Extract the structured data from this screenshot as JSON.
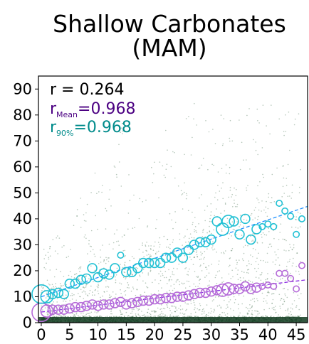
{
  "chart_data": {
    "type": "scatter",
    "title_lines": [
      "Shallow Carbonates",
      "(MAM)"
    ],
    "xlabel": "",
    "ylabel": "",
    "xlim": [
      -0.5,
      47
    ],
    "ylim": [
      0,
      95
    ],
    "x_ticks": [
      0,
      5,
      10,
      15,
      20,
      25,
      30,
      35,
      40,
      45
    ],
    "y_ticks": [
      0,
      10,
      20,
      30,
      40,
      50,
      60,
      70,
      80,
      90
    ],
    "grid": false,
    "annotations": {
      "r_all": {
        "label": "r = 0.264",
        "color": "#000000"
      },
      "r_mean": {
        "prefix": "r",
        "subscript": "Mean",
        "suffix": "=0.968",
        "color": "#4b0082"
      },
      "r_90": {
        "prefix": "r",
        "subscript": "90%",
        "suffix": "=0.968",
        "color": "#008b8b"
      }
    },
    "colors": {
      "scatter": "#2e5e3a",
      "mean": "#b56bd8",
      "p90": "#22c1d4",
      "mean_fit": "#8a2be2",
      "p90_fit": "#1e90ff"
    },
    "series": [
      {
        "kind": "binned_90th_percentile",
        "x": [
          0,
          1,
          2,
          3,
          4,
          5,
          6,
          7,
          8,
          9,
          10,
          11,
          12,
          13,
          14,
          15,
          16,
          17,
          18,
          19,
          20,
          21,
          22,
          23,
          24,
          25,
          26,
          27,
          28,
          29,
          30,
          31,
          32,
          33,
          34,
          35,
          36,
          37,
          38,
          39,
          40,
          41,
          42,
          43,
          44,
          45,
          46
        ],
        "y": [
          11,
          10,
          11,
          11.5,
          11,
          15,
          15,
          16.5,
          17,
          21,
          17.5,
          19,
          18.5,
          21,
          26,
          19.5,
          19.5,
          21,
          23,
          23,
          23,
          23,
          25,
          25,
          27,
          25,
          28,
          30,
          31,
          31,
          32,
          39,
          36,
          39,
          39,
          34,
          40,
          32,
          36,
          37,
          38,
          37,
          46,
          43,
          41,
          34,
          40
        ],
        "sizes": [
          5,
          3,
          2,
          2,
          2,
          2,
          2,
          2,
          2,
          2,
          2,
          2,
          2,
          2,
          1,
          2,
          2,
          2,
          2,
          2,
          2,
          2,
          2,
          2,
          2,
          2,
          2,
          2,
          2,
          2,
          2,
          2,
          3,
          3,
          2,
          2,
          2,
          2,
          2,
          1,
          1,
          1,
          1,
          1,
          1,
          1,
          1
        ]
      },
      {
        "kind": "binned_mean",
        "x": [
          0,
          1,
          2,
          3,
          4,
          5,
          6,
          7,
          8,
          9,
          10,
          11,
          12,
          13,
          14,
          15,
          16,
          17,
          18,
          19,
          20,
          21,
          22,
          23,
          24,
          25,
          26,
          27,
          28,
          29,
          30,
          31,
          32,
          33,
          34,
          35,
          36,
          37,
          38,
          39,
          40,
          41,
          42,
          43,
          44,
          45,
          46
        ],
        "y": [
          4,
          4.5,
          5,
          5,
          5,
          5.5,
          6,
          6,
          6.5,
          7,
          6.5,
          7,
          7,
          7.5,
          8,
          7,
          7.5,
          8,
          8.5,
          8.5,
          9,
          9,
          9.5,
          9.5,
          10,
          10,
          10.5,
          11,
          11.5,
          11.5,
          12,
          12.5,
          12.5,
          13,
          13,
          13,
          14,
          13,
          13.5,
          14,
          14.5,
          14,
          19,
          19,
          17,
          13,
          22
        ],
        "sizes": [
          5,
          3,
          2,
          2,
          2,
          2,
          2,
          2,
          2,
          2,
          2,
          2,
          2,
          2,
          2,
          2,
          2,
          2,
          2,
          2,
          2,
          2,
          2,
          2,
          2,
          2,
          2,
          2,
          2,
          2,
          2,
          2,
          3,
          3,
          2,
          2,
          2,
          2,
          2,
          1,
          1,
          1,
          1,
          1,
          1,
          1,
          1
        ]
      }
    ],
    "fits": {
      "p90_fit": {
        "slope": 0.74,
        "intercept": 10.0
      },
      "mean_fit": {
        "slope": 0.265,
        "intercept": 4.1
      }
    }
  }
}
